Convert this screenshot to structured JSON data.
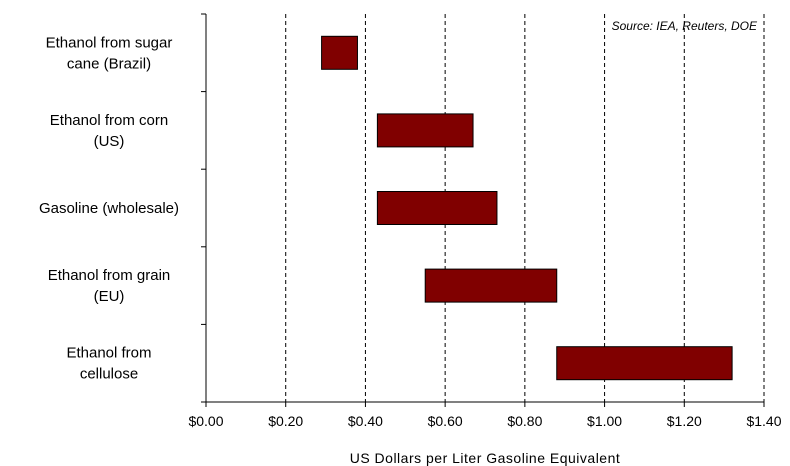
{
  "chart_data": {
    "type": "bar",
    "orientation": "horizontal-range",
    "categories": [
      [
        "Ethanol from sugar",
        "cane (Brazil)"
      ],
      [
        "Ethanol from corn",
        "(US)"
      ],
      [
        "Gasoline (wholesale)"
      ],
      [
        "Ethanol from grain",
        "(EU)"
      ],
      [
        "Ethanol from",
        "cellulose"
      ]
    ],
    "ranges": [
      [
        0.29,
        0.38
      ],
      [
        0.43,
        0.67
      ],
      [
        0.43,
        0.73
      ],
      [
        0.55,
        0.88
      ],
      [
        0.88,
        1.32
      ]
    ],
    "xlim": [
      0,
      1.4
    ],
    "xticks": [
      0,
      0.2,
      0.4,
      0.6,
      0.8,
      1.0,
      1.2,
      1.4
    ],
    "xtick_labels": [
      "$0.00",
      "$0.20",
      "$0.40",
      "$0.60",
      "$0.80",
      "$1.00",
      "$1.20",
      "$1.40"
    ],
    "xlabel": "US Dollars per Liter Gasoline Equivalent",
    "ylabel": "",
    "title": "",
    "annotation": "Source: IEA, Reuters, DOE",
    "grid": "vertical dashed",
    "legend": "none",
    "bar_color": "#800000"
  }
}
